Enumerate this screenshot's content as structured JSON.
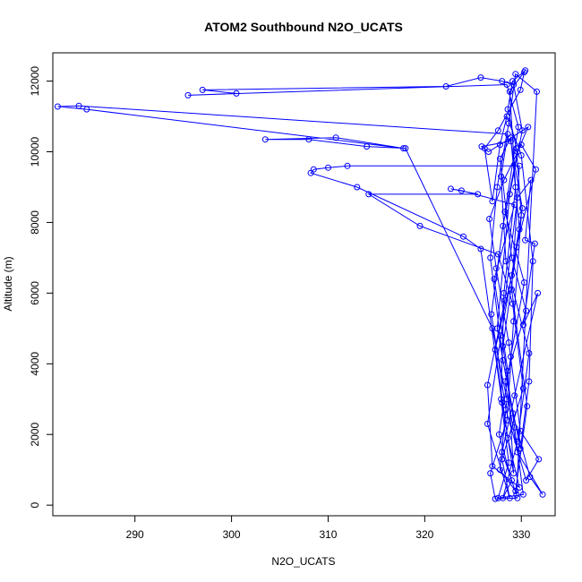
{
  "chart_data": {
    "type": "line",
    "title": "ATOM2 Southbound N2O_UCATS",
    "xlabel": "N2O_UCATS",
    "ylabel": "Altitude (m)",
    "xlim": [
      281.5,
      333.5
    ],
    "ylim": [
      -300,
      12800
    ],
    "x_ticks": [
      290,
      300,
      310,
      320,
      330
    ],
    "y_ticks": [
      0,
      2000,
      4000,
      6000,
      8000,
      10000,
      12000
    ],
    "grid": false,
    "series": [
      {
        "color": "#0000ff",
        "marker": "open-circle",
        "line": true,
        "points": [
          [
            329.6,
            200
          ],
          [
            327.3,
            180
          ],
          [
            326.8,
            900
          ],
          [
            328.5,
            2400
          ],
          [
            329.2,
            5200
          ],
          [
            330.0,
            8200
          ],
          [
            329.5,
            10100
          ],
          [
            328.6,
            11200
          ],
          [
            329.1,
            12000
          ],
          [
            330.4,
            12300
          ],
          [
            328.8,
            11700
          ],
          [
            329.4,
            9000
          ],
          [
            328.2,
            6000
          ],
          [
            327.9,
            3000
          ],
          [
            328.7,
            1200
          ],
          [
            327.6,
            200
          ],
          [
            330.2,
            300
          ],
          [
            329.3,
            2200
          ],
          [
            328.1,
            4500
          ],
          [
            329.8,
            7800
          ],
          [
            328.9,
            10400
          ],
          [
            327.8,
            9800
          ],
          [
            329.0,
            7000
          ],
          [
            330.5,
            5500
          ],
          [
            328.3,
            3500
          ],
          [
            329.6,
            1500
          ],
          [
            332.2,
            300
          ],
          [
            330.9,
            800
          ],
          [
            329.1,
            2600
          ],
          [
            327.5,
            5000
          ],
          [
            328.8,
            8800
          ],
          [
            330.1,
            10600
          ],
          [
            329.2,
            11900
          ],
          [
            328.0,
            12000
          ],
          [
            325.8,
            12100
          ],
          [
            322.2,
            11850
          ],
          [
            297.0,
            11750
          ],
          [
            300.5,
            11650
          ],
          [
            295.5,
            11600
          ],
          [
            328.5,
            11900
          ],
          [
            329.7,
            10700
          ],
          [
            328.3,
            8300
          ],
          [
            330.3,
            6300
          ],
          [
            328.9,
            4200
          ],
          [
            327.7,
            2000
          ],
          [
            329.0,
            700
          ],
          [
            328.1,
            200
          ],
          [
            329.6,
            1800
          ],
          [
            330.8,
            4300
          ],
          [
            328.4,
            6900
          ],
          [
            327.9,
            9300
          ],
          [
            328.6,
            10500
          ],
          [
            284.2,
            11300
          ],
          [
            282.0,
            11280
          ],
          [
            285.0,
            11200
          ],
          [
            317.8,
            10100
          ],
          [
            310.8,
            10400
          ],
          [
            303.5,
            10350
          ],
          [
            308.0,
            10350
          ],
          [
            314.0,
            10150
          ],
          [
            318.0,
            10100
          ],
          [
            327.0,
            5000
          ],
          [
            328.5,
            3000
          ],
          [
            327.8,
            1000
          ],
          [
            329.4,
            400
          ],
          [
            330.6,
            2800
          ],
          [
            329.0,
            6100
          ],
          [
            329.8,
            9600
          ],
          [
            312.0,
            9600
          ],
          [
            310.0,
            9550
          ],
          [
            308.5,
            9500
          ],
          [
            308.2,
            9400
          ],
          [
            313.0,
            9000
          ],
          [
            324.0,
            7600
          ],
          [
            325.8,
            7250
          ],
          [
            328.0,
            2900
          ],
          [
            329.2,
            900
          ],
          [
            328.6,
            3800
          ],
          [
            327.2,
            6400
          ],
          [
            329.3,
            8500
          ],
          [
            323.8,
            8900
          ],
          [
            322.7,
            8950
          ],
          [
            325.5,
            8800
          ],
          [
            314.2,
            8800
          ],
          [
            319.5,
            7900
          ],
          [
            327.6,
            7100
          ],
          [
            329.1,
            5700
          ],
          [
            330.2,
            3300
          ],
          [
            328.0,
            1300
          ],
          [
            328.8,
            200
          ],
          [
            326.5,
            2300
          ],
          [
            327.9,
            4800
          ],
          [
            329.5,
            7300
          ],
          [
            331.5,
            9500
          ],
          [
            330.0,
            10200
          ],
          [
            328.2,
            9200
          ],
          [
            326.7,
            8100
          ],
          [
            327.4,
            6700
          ],
          [
            328.7,
            4600
          ],
          [
            329.9,
            2100
          ],
          [
            331.8,
            1300
          ],
          [
            330.5,
            700
          ],
          [
            328.4,
            2700
          ],
          [
            326.9,
            5400
          ],
          [
            328.1,
            7900
          ],
          [
            329.6,
            10000
          ],
          [
            330.7,
            10700
          ],
          [
            326.6,
            10000
          ],
          [
            325.9,
            10150
          ],
          [
            328.9,
            10300
          ],
          [
            330.1,
            8400
          ],
          [
            329.0,
            6500
          ],
          [
            327.3,
            4400
          ],
          [
            328.6,
            1900
          ],
          [
            329.8,
            500
          ],
          [
            327.0,
            1100
          ],
          [
            326.5,
            3400
          ],
          [
            328.3,
            5800
          ],
          [
            329.6,
            8700
          ],
          [
            331.0,
            9200
          ],
          [
            330.4,
            7500
          ],
          [
            331.4,
            7400
          ],
          [
            330.2,
            5100
          ],
          [
            331.7,
            6000
          ],
          [
            329.3,
            3100
          ],
          [
            328.0,
            1500
          ],
          [
            329.5,
            300
          ],
          [
            331.6,
            11700
          ],
          [
            329.4,
            12200
          ],
          [
            328.7,
            10800
          ],
          [
            327.5,
            9000
          ],
          [
            326.8,
            7000
          ],
          [
            328.1,
            4100
          ],
          [
            329.9,
            1600
          ],
          [
            330.8,
            3500
          ],
          [
            331.2,
            6900
          ],
          [
            330.0,
            9900
          ],
          [
            328.5,
            11000
          ],
          [
            327.8,
            10200
          ],
          [
            327.0,
            8600
          ],
          [
            326.2,
            10100
          ],
          [
            327.6,
            10600
          ],
          [
            329.9,
            11750
          ],
          [
            330.3,
            12250
          ]
        ]
      }
    ]
  }
}
